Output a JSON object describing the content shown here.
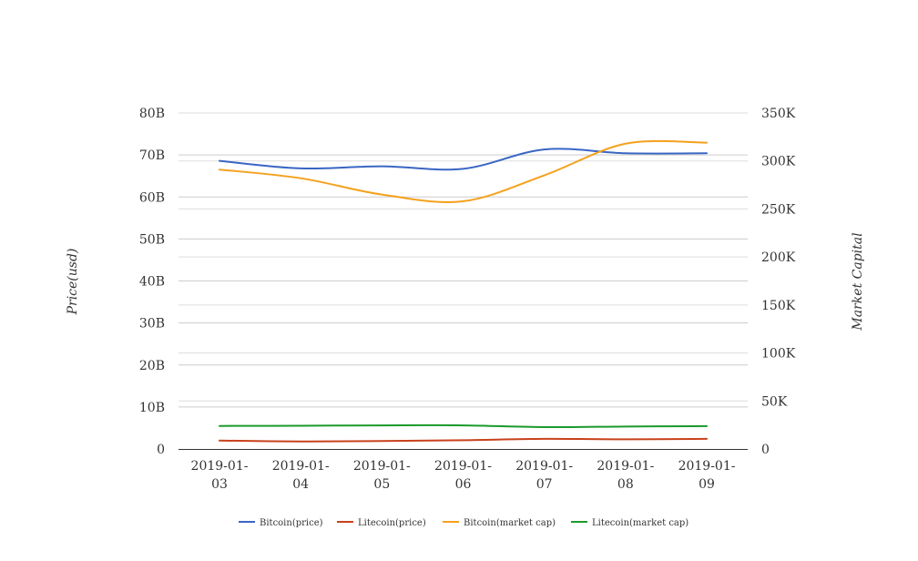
{
  "chart_data": {
    "type": "line",
    "categories": [
      "2019-01-03",
      "2019-01-04",
      "2019-01-05",
      "2019-01-06",
      "2019-01-07",
      "2019-01-08",
      "2019-01-09"
    ],
    "category_lines": [
      [
        "2019-01-",
        "03"
      ],
      [
        "2019-01-",
        "04"
      ],
      [
        "2019-01-",
        "05"
      ],
      [
        "2019-01-",
        "06"
      ],
      [
        "2019-01-",
        "07"
      ],
      [
        "2019-01-",
        "08"
      ],
      [
        "2019-01-",
        "09"
      ]
    ],
    "left_axis": {
      "title": "Price(usd)",
      "ylim": [
        0,
        80000000000
      ],
      "ticks": [
        0,
        10000000000,
        20000000000,
        30000000000,
        40000000000,
        50000000000,
        60000000000,
        70000000000,
        80000000000
      ],
      "tick_labels": [
        "0",
        "10B",
        "20B",
        "30B",
        "40B",
        "50B",
        "60B",
        "70B",
        "80B"
      ]
    },
    "right_axis": {
      "title": "Market Capital",
      "ylim": [
        0,
        350000
      ],
      "ticks": [
        0,
        50000,
        100000,
        150000,
        200000,
        250000,
        300000,
        350000
      ],
      "tick_labels": [
        "0",
        "50K",
        "100K",
        "150K",
        "200K",
        "250K",
        "300K",
        "350K"
      ]
    },
    "grid": true,
    "legend_position": "bottom",
    "series": [
      {
        "name": "Bitcoin(price)",
        "axis": "left",
        "color": "#3a66c4",
        "values": [
          68600000000,
          66800000000,
          67300000000,
          66700000000,
          71300000000,
          70400000000,
          70400000000
        ]
      },
      {
        "name": "Litecoin(price)",
        "axis": "left",
        "color": "#c8411b",
        "values": [
          2000000000,
          1800000000,
          1900000000,
          2100000000,
          2400000000,
          2300000000,
          2400000000
        ]
      },
      {
        "name": "Bitcoin(market cap)",
        "axis": "right",
        "color": "#f4a11d",
        "values": [
          291000,
          282000,
          265000,
          258000,
          285000,
          318000,
          319000
        ]
      },
      {
        "name": "Litecoin(market cap)",
        "axis": "right",
        "color": "#1a9a2a",
        "values": [
          24000,
          24200,
          24600,
          24600,
          22800,
          23400,
          23800
        ]
      }
    ]
  }
}
